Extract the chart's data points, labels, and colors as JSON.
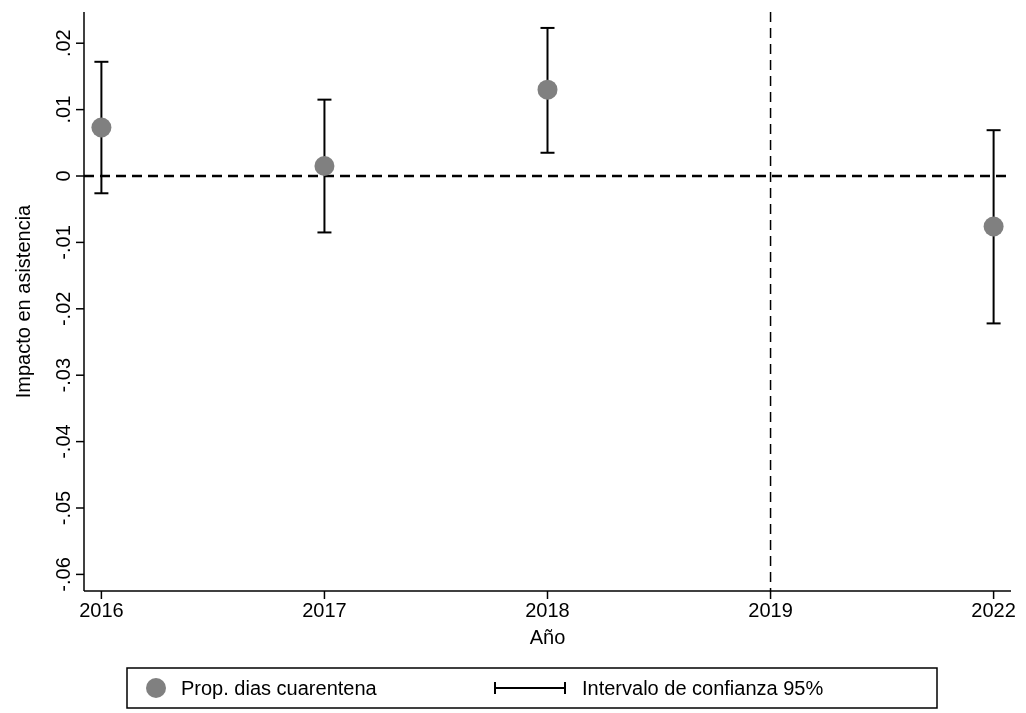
{
  "chart_data": {
    "type": "scatter",
    "xlabel": "Año",
    "ylabel": "Impacto en asistencia",
    "categories": [
      "2016",
      "2017",
      "2018",
      "2019",
      "2022"
    ],
    "series": [
      {
        "name": "Prop. dias cuarentena",
        "color": "#808080",
        "values": [
          0.0073,
          0.0015,
          0.013,
          null,
          -0.0076
        ],
        "errors": [
          [
            -0.0026,
            0.0172
          ],
          [
            -0.0085,
            0.0115
          ],
          [
            0.0035,
            0.0223
          ],
          null,
          [
            -0.0222,
            0.0069
          ]
        ]
      }
    ],
    "ylim": [
      -0.0625,
      0.0247
    ],
    "yticks": [
      {
        "value": -0.06,
        "label": "-.06"
      },
      {
        "value": -0.05,
        "label": "-.05"
      },
      {
        "value": -0.04,
        "label": "-.04"
      },
      {
        "value": -0.03,
        "label": "-.03"
      },
      {
        "value": -0.02,
        "label": "-.02"
      },
      {
        "value": -0.01,
        "label": "-.01"
      },
      {
        "value": 0,
        "label": "0"
      },
      {
        "value": 0.01,
        "label": ".01"
      },
      {
        "value": 0.02,
        "label": ".02"
      }
    ],
    "ref_lines": [
      {
        "axis": "y",
        "value": 0,
        "line_style": "dashed",
        "color": "#000000"
      },
      {
        "axis": "x",
        "value": "2019",
        "line_style": "dashed",
        "color": "#000000"
      }
    ],
    "annotations": [
      "Intervalo de confianza 95%"
    ],
    "marker": "circle",
    "grid": false,
    "legend": "bottom"
  }
}
